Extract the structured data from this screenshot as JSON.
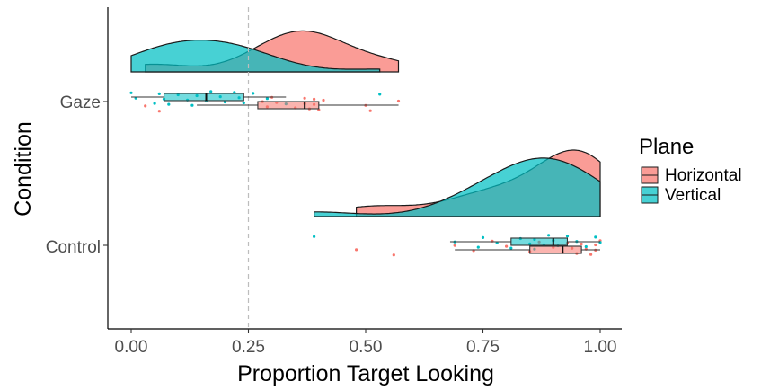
{
  "chart_data": {
    "type": "raincloud",
    "xlabel": "Proportion Target Looking",
    "ylabel": "Condition",
    "xlim": [
      0.0,
      1.0
    ],
    "x_ticks": [
      "0.00",
      "0.25",
      "0.50",
      "0.75",
      "1.00"
    ],
    "x_tick_values": [
      0.0,
      0.25,
      0.5,
      0.75,
      1.0
    ],
    "reference_line": 0.25,
    "categories": [
      "Control",
      "Gaze"
    ],
    "grid": false,
    "legend": {
      "title": "Plane",
      "position": "right",
      "entries": [
        {
          "name": "Horizontal",
          "color": "#F8766D"
        },
        {
          "name": "Vertical",
          "color": "#00BFC4"
        }
      ]
    },
    "series": [
      {
        "name": "Horizontal",
        "color": "#F8766D",
        "groups": {
          "Gaze": {
            "density": {
              "x_range": [
                0.03,
                0.57
              ],
              "peak_x": 0.38,
              "relative_height": 0.76
            },
            "box": {
              "min": 0.14,
              "q1": 0.27,
              "median": 0.37,
              "q3": 0.4,
              "max": 0.57
            },
            "points": [
              0.03,
              0.06,
              0.28,
              0.29,
              0.3,
              0.31,
              0.35,
              0.37,
              0.37,
              0.38,
              0.39,
              0.39,
              0.4,
              0.41,
              0.5,
              0.51,
              0.57
            ]
          },
          "Control": {
            "density": {
              "x_range": [
                0.48,
                1.0
              ],
              "peak_x": 0.94,
              "relative_height": 1.0
            },
            "box": {
              "min": 0.69,
              "q1": 0.85,
              "median": 0.92,
              "q3": 0.96,
              "max": 1.0
            },
            "points": [
              0.48,
              0.56,
              0.69,
              0.73,
              0.77,
              0.8,
              0.85,
              0.87,
              0.9,
              0.92,
              0.93,
              0.94,
              0.95,
              0.96,
              0.97,
              0.98,
              0.99,
              0.99,
              1.0
            ]
          }
        }
      },
      {
        "name": "Vertical",
        "color": "#00BFC4",
        "groups": {
          "Gaze": {
            "density": {
              "x_range": [
                0.0,
                0.53
              ],
              "peak_x": 0.15,
              "relative_height": 0.59
            },
            "box": {
              "min": 0.0,
              "q1": 0.07,
              "median": 0.16,
              "q3": 0.24,
              "max": 0.33
            },
            "points": [
              0.0,
              0.01,
              0.05,
              0.06,
              0.07,
              0.08,
              0.1,
              0.12,
              0.13,
              0.14,
              0.16,
              0.17,
              0.19,
              0.2,
              0.22,
              0.23,
              0.24,
              0.26,
              0.29,
              0.33,
              0.53
            ]
          },
          "Control": {
            "density": {
              "x_range": [
                0.39,
                1.0
              ],
              "peak_x": 0.92,
              "relative_height": 0.88
            },
            "box": {
              "min": 0.68,
              "q1": 0.81,
              "median": 0.9,
              "q3": 0.93,
              "max": 1.0
            },
            "points": [
              0.39,
              0.69,
              0.74,
              0.75,
              0.78,
              0.81,
              0.83,
              0.85,
              0.86,
              0.86,
              0.88,
              0.89,
              0.9,
              0.91,
              0.93,
              0.95,
              0.97,
              0.99,
              1.0
            ]
          }
        }
      }
    ]
  }
}
